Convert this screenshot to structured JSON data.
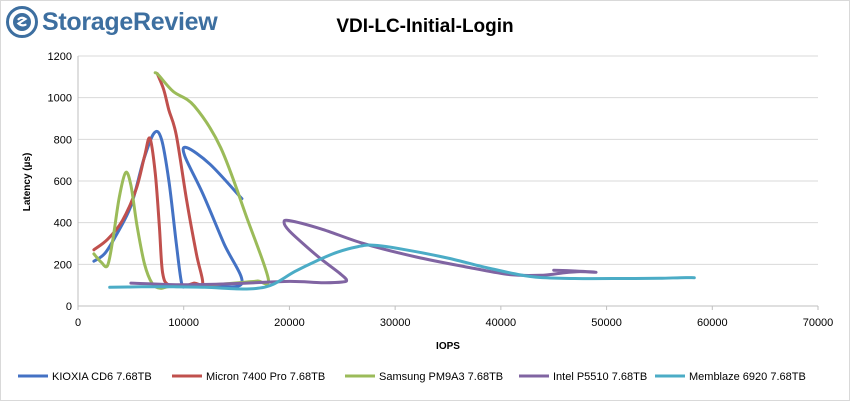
{
  "brand": {
    "name": "StorageReview",
    "accent": "#3d6fa0"
  },
  "chart_data": {
    "type": "line",
    "title": "VDI-LC-Initial-Login",
    "xlabel": "IOPS",
    "ylabel": "Latency (µs)",
    "xlim": [
      0,
      70000
    ],
    "ylim": [
      0,
      1200
    ],
    "xticks": [
      0,
      10000,
      20000,
      30000,
      40000,
      50000,
      60000,
      70000
    ],
    "yticks": [
      0,
      200,
      400,
      600,
      800,
      1000,
      1200
    ],
    "grid": "horizontal",
    "legend_position": "bottom",
    "series": [
      {
        "name": "KIOXIA CD6 7.68TB",
        "color": "#4472c4",
        "points": [
          [
            1500,
            215
          ],
          [
            2500,
            250
          ],
          [
            3500,
            330
          ],
          [
            5000,
            480
          ],
          [
            6200,
            700
          ],
          [
            7200,
            830
          ],
          [
            7900,
            800
          ],
          [
            8600,
            600
          ],
          [
            9300,
            300
          ],
          [
            9800,
            110
          ],
          [
            10200,
            95
          ],
          [
            10800,
            92
          ],
          [
            12500,
            98
          ],
          [
            15500,
            110
          ],
          [
            13800,
            300
          ],
          [
            11800,
            540
          ],
          [
            10100,
            720
          ],
          [
            10300,
            760
          ],
          [
            12500,
            680
          ],
          [
            15500,
            515
          ]
        ]
      },
      {
        "name": "Micron 7400 Pro 7.68TB",
        "color": "#c0504d",
        "points": [
          [
            1500,
            270
          ],
          [
            2800,
            320
          ],
          [
            4200,
            410
          ],
          [
            5500,
            560
          ],
          [
            6300,
            720
          ],
          [
            6800,
            805
          ],
          [
            7300,
            640
          ],
          [
            7700,
            380
          ],
          [
            8000,
            160
          ],
          [
            8600,
            100
          ],
          [
            10000,
            95
          ],
          [
            11000,
            110
          ],
          [
            11800,
            110
          ],
          [
            11200,
            250
          ],
          [
            10300,
            500
          ],
          [
            9300,
            820
          ],
          [
            8600,
            940
          ],
          [
            8100,
            1040
          ],
          [
            7500,
            1115
          ]
        ]
      },
      {
        "name": "Samsung PM9A3 7.68TB",
        "color": "#9bbb59",
        "points": [
          [
            1500,
            250
          ],
          [
            2200,
            210
          ],
          [
            2800,
            195
          ],
          [
            3300,
            320
          ],
          [
            3900,
            520
          ],
          [
            4500,
            640
          ],
          [
            5000,
            580
          ],
          [
            5600,
            380
          ],
          [
            6300,
            200
          ],
          [
            7000,
            110
          ],
          [
            7800,
            85
          ],
          [
            8800,
            95
          ],
          [
            12000,
            100
          ],
          [
            16000,
            115
          ],
          [
            17000,
            120
          ],
          [
            18000,
            130
          ],
          [
            16000,
            420
          ],
          [
            13500,
            760
          ],
          [
            11000,
            960
          ],
          [
            9000,
            1030
          ],
          [
            7600,
            1110
          ],
          [
            7300,
            1120
          ]
        ]
      },
      {
        "name": "Intel P5510 7.68TB",
        "color": "#8064a2",
        "points": [
          [
            5000,
            110
          ],
          [
            10000,
            102
          ],
          [
            15000,
            108
          ],
          [
            20000,
            118
          ],
          [
            23000,
            112
          ],
          [
            25000,
            115
          ],
          [
            25400,
            125
          ],
          [
            24800,
            155
          ],
          [
            23000,
            225
          ],
          [
            21500,
            290
          ],
          [
            20000,
            360
          ],
          [
            19500,
            400
          ],
          [
            20000,
            410
          ],
          [
            23000,
            370
          ],
          [
            27000,
            300
          ],
          [
            32000,
            235
          ],
          [
            37000,
            185
          ],
          [
            41000,
            150
          ],
          [
            44000,
            148
          ],
          [
            46000,
            160
          ],
          [
            47500,
            165
          ],
          [
            49000,
            162
          ],
          [
            47000,
            168
          ],
          [
            45000,
            172
          ]
        ]
      },
      {
        "name": "Memblaze 6920 7.68TB",
        "color": "#4bacc6",
        "points": [
          [
            3000,
            90
          ],
          [
            6000,
            92
          ],
          [
            9000,
            92
          ],
          [
            12000,
            90
          ],
          [
            15000,
            82
          ],
          [
            17000,
            85
          ],
          [
            18500,
            105
          ],
          [
            20500,
            165
          ],
          [
            22500,
            215
          ],
          [
            24500,
            258
          ],
          [
            26500,
            285
          ],
          [
            28000,
            292
          ],
          [
            31000,
            270
          ],
          [
            35000,
            230
          ],
          [
            39000,
            180
          ],
          [
            43000,
            140
          ],
          [
            47000,
            132
          ],
          [
            52000,
            132
          ],
          [
            55000,
            133
          ],
          [
            57000,
            136
          ],
          [
            58300,
            136
          ]
        ]
      }
    ]
  }
}
